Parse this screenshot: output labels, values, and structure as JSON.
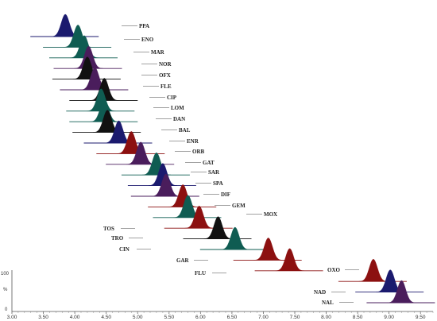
{
  "chart_data": {
    "type": "line",
    "title": "",
    "xlabel": "",
    "ylabel": "%",
    "xlim": [
      3.0,
      9.7
    ],
    "x_ticks": [
      "3.00",
      "3.50",
      "4.00",
      "4.50",
      "5.00",
      "5.50",
      "6.00",
      "6.50",
      "7.00",
      "7.50",
      "8.00",
      "8.50",
      "9.00",
      "9.50"
    ],
    "y_ticks": [
      "100",
      "0"
    ],
    "colors": {
      "navy": "#1b1a6e",
      "teal": "#0f5c52",
      "purple": "#4a1d5c",
      "black": "#111111",
      "red": "#8c1010"
    },
    "series": [
      {
        "label": "PPA",
        "rt": 3.85,
        "color": "navy"
      },
      {
        "label": "ENO",
        "rt": 4.05,
        "color": "teal"
      },
      {
        "label": "MAR",
        "rt": 4.15,
        "color": "teal"
      },
      {
        "label": "NOR",
        "rt": 4.22,
        "color": "purple"
      },
      {
        "label": "OFX",
        "rt": 4.2,
        "color": "black"
      },
      {
        "label": "FLE",
        "rt": 4.32,
        "color": "purple"
      },
      {
        "label": "CIP",
        "rt": 4.47,
        "color": "black"
      },
      {
        "label": "LOM",
        "rt": 4.42,
        "color": "teal"
      },
      {
        "label": "DAN",
        "rt": 4.47,
        "color": "teal"
      },
      {
        "label": "BAL",
        "rt": 4.52,
        "color": "black"
      },
      {
        "label": "ENR",
        "rt": 4.7,
        "color": "navy"
      },
      {
        "label": "ORB",
        "rt": 4.9,
        "color": "red"
      },
      {
        "label": "GAT",
        "rt": 5.05,
        "color": "purple"
      },
      {
        "label": "SAR",
        "rt": 5.3,
        "color": "teal"
      },
      {
        "label": "SPA",
        "rt": 5.4,
        "color": "navy"
      },
      {
        "label": "DIF",
        "rt": 5.45,
        "color": "purple"
      },
      {
        "label": "GEM",
        "rt": 5.72,
        "color": "red"
      },
      {
        "label": "MOX",
        "rt": 5.8,
        "color": "teal"
      },
      {
        "label": "TOS",
        "rt": 5.98,
        "color": "red"
      },
      {
        "label": "TRO",
        "rt": 6.28,
        "color": "black"
      },
      {
        "label": "CIN",
        "rt": 6.55,
        "color": "teal"
      },
      {
        "label": "GAR",
        "rt": 7.08,
        "color": "red"
      },
      {
        "label": "FLU",
        "rt": 7.42,
        "color": "red"
      },
      {
        "label": "OXO",
        "rt": 8.75,
        "color": "red"
      },
      {
        "label": "NAD",
        "rt": 9.02,
        "color": "navy"
      },
      {
        "label": "NAL",
        "rt": 9.2,
        "color": "purple"
      }
    ]
  }
}
